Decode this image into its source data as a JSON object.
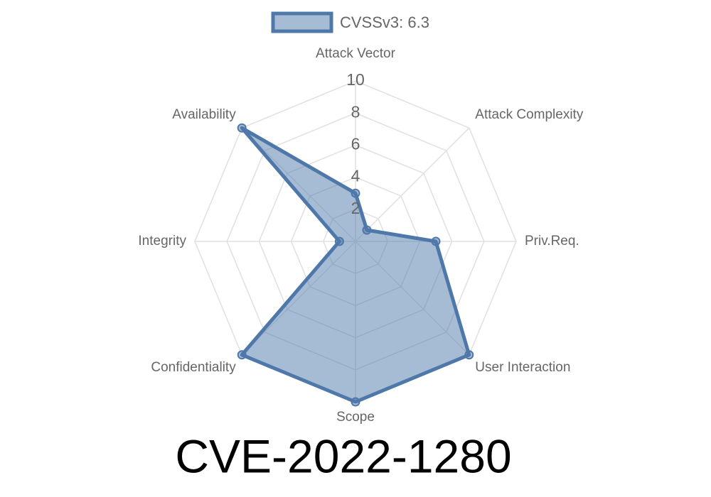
{
  "chart_data": {
    "type": "radar",
    "title": "CVE-2022-1280",
    "categories": [
      "Attack Vector",
      "Attack Complexity",
      "Priv.Req.",
      "User Interaction",
      "Scope",
      "Confidentiality",
      "Integrity",
      "Availability"
    ],
    "series": [
      {
        "name": "CVSSv3: 6.3",
        "color": "#4e78a9",
        "values": [
          3,
          1,
          5,
          10,
          10,
          10,
          1,
          10
        ]
      }
    ],
    "rlim": [
      0,
      10
    ],
    "rticks": [
      2,
      4,
      6,
      8,
      10
    ],
    "grid": true,
    "legend": "top"
  }
}
